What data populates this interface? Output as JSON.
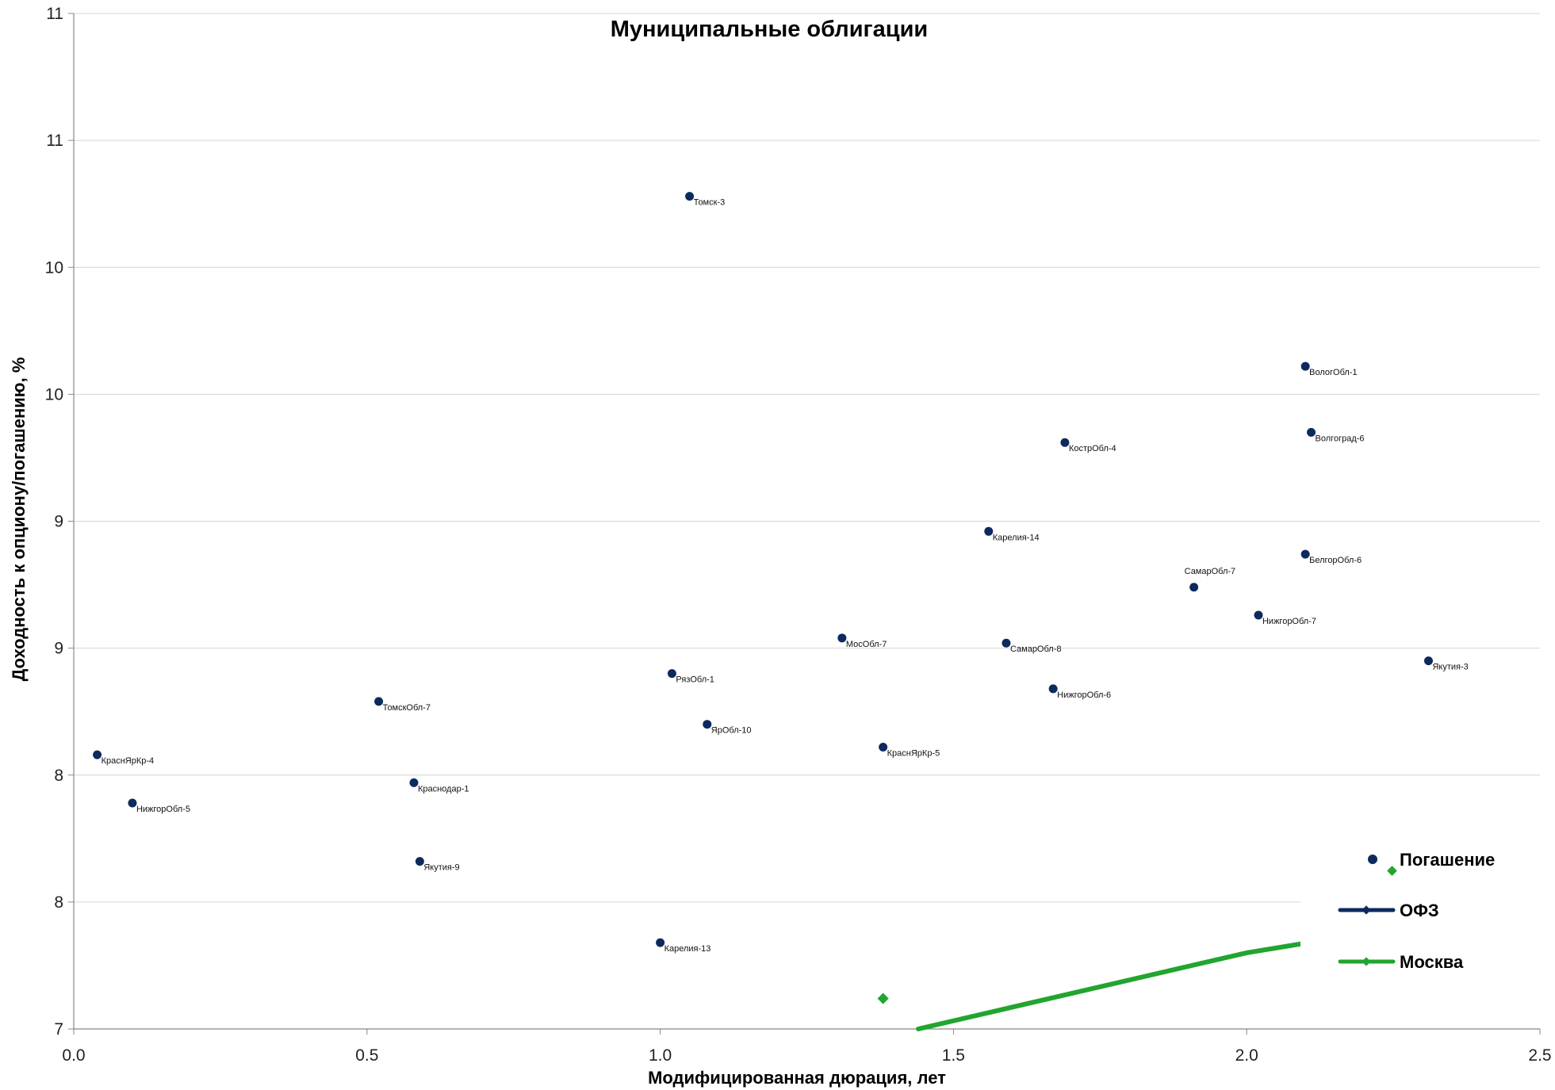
{
  "chart_data": {
    "type": "scatter",
    "title": "Муниципальные облигации",
    "xlabel": "Модифицированная дюрация, лет",
    "ylabel": "Доходность к опциону/погашению, %",
    "xlim": [
      0,
      2.5
    ],
    "ylim": [
      7,
      11
    ],
    "x_ticks": [
      {
        "value": 0.0,
        "label": "0.0"
      },
      {
        "value": 0.5,
        "label": "0.5"
      },
      {
        "value": 1.0,
        "label": "1.0"
      },
      {
        "value": 1.5,
        "label": "1.5"
      },
      {
        "value": 2.0,
        "label": "2.0"
      },
      {
        "value": 2.5,
        "label": "2.5"
      }
    ],
    "y_ticks": [
      {
        "value": 7.0,
        "label": "7"
      },
      {
        "value": 7.5,
        "label": "8"
      },
      {
        "value": 8.0,
        "label": "8"
      },
      {
        "value": 8.5,
        "label": "9"
      },
      {
        "value": 9.0,
        "label": "9"
      },
      {
        "value": 9.5,
        "label": "10"
      },
      {
        "value": 10.0,
        "label": "10"
      },
      {
        "value": 10.5,
        "label": "11"
      },
      {
        "value": 11.0,
        "label": "11"
      }
    ],
    "grid": true,
    "legend_position": "bottom-right",
    "legend": [
      {
        "name": "Погашение",
        "kind": "dot",
        "color": "#0d2a5e"
      },
      {
        "name": "ОФЗ",
        "kind": "line",
        "color": "#0d2a5e"
      },
      {
        "name": "Москва",
        "kind": "line",
        "color": "#22a52e"
      }
    ],
    "series": [
      {
        "name": "Погашение",
        "kind": "scatter",
        "color": "#0d2a5e",
        "points": [
          {
            "label": "КраснЯрКр-4",
            "x": 0.04,
            "y": 8.08
          },
          {
            "label": "НижгорОбл-5",
            "x": 0.1,
            "y": 7.89
          },
          {
            "label": "ТомскОбл-7",
            "x": 0.52,
            "y": 8.29
          },
          {
            "label": "Краснодар-1",
            "x": 0.58,
            "y": 7.97
          },
          {
            "label": "Якутия-9",
            "x": 0.59,
            "y": 7.66
          },
          {
            "label": "Карелия-13",
            "x": 1.0,
            "y": 7.34
          },
          {
            "label": "РязОбл-1",
            "x": 1.02,
            "y": 8.4
          },
          {
            "label": "Томск-3",
            "x": 1.05,
            "y": 10.28
          },
          {
            "label": "ЯрОбл-10",
            "x": 1.08,
            "y": 8.2
          },
          {
            "label": "МосОбл-7",
            "x": 1.31,
            "y": 8.54
          },
          {
            "label": "КраснЯрКр-5",
            "x": 1.38,
            "y": 8.11
          },
          {
            "label": "Карелия-14",
            "x": 1.56,
            "y": 8.96
          },
          {
            "label": "СамарОбл-8",
            "x": 1.59,
            "y": 8.52
          },
          {
            "label": "НижгорОбл-6",
            "x": 1.67,
            "y": 8.34
          },
          {
            "label": "КострОбл-4",
            "x": 1.69,
            "y": 9.31
          },
          {
            "label": "СамарОбл-7",
            "x": 1.91,
            "y": 8.74
          },
          {
            "label": "НижгорОбл-7",
            "x": 2.02,
            "y": 8.63
          },
          {
            "label": "ВологОбл-1",
            "x": 2.1,
            "y": 9.61
          },
          {
            "label": "БелгорОбл-6",
            "x": 2.1,
            "y": 8.87
          },
          {
            "label": "Волгоград-6",
            "x": 2.11,
            "y": 9.35
          },
          {
            "label": "Якутия-3",
            "x": 2.31,
            "y": 8.45
          }
        ]
      },
      {
        "name": "ОФЗ",
        "kind": "line",
        "color": "#0d2a5e",
        "points": []
      },
      {
        "name": "Москва",
        "kind": "line+marker",
        "color": "#22a52e",
        "line": [
          {
            "x": 1.44,
            "y": 7.0
          },
          {
            "x": 2.0,
            "y": 7.3
          },
          {
            "x": 2.5,
            "y": 7.49
          }
        ],
        "markers": [
          {
            "x": 1.38,
            "y": 7.12
          }
        ]
      }
    ]
  }
}
